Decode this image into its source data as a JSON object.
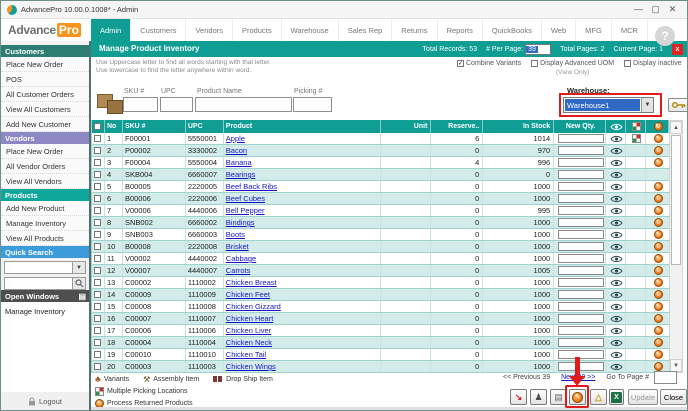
{
  "window": {
    "title": "AdvancePro 10.00.0.1008*  - Admin",
    "minimize": "—",
    "maximize": "▢",
    "close": "✕"
  },
  "brand": {
    "left": "Advance",
    "right": "Pro"
  },
  "nav": {
    "items": [
      "Admin",
      "Customers",
      "Vendors",
      "Products",
      "Warehouse",
      "Sales Rep",
      "Returns",
      "Reports",
      "QuickBooks",
      "Web",
      "MFG",
      "MCR"
    ],
    "active": "Admin"
  },
  "help_label": "?",
  "sidebar": {
    "customers": {
      "title": "Customers",
      "items": [
        "Place New Order",
        "POS",
        "All Customer Orders",
        "View All Customers",
        "Add New Customer"
      ]
    },
    "vendors": {
      "title": "Vendors",
      "items": [
        "Place New Order",
        "All Vendor Orders",
        "View All Vendors"
      ]
    },
    "products": {
      "title": "Products",
      "items": [
        "Add New Product",
        "Manage Inventory",
        "View All Products"
      ]
    },
    "quick_search_title": "Quick Search",
    "open_windows_title": "Open Windows",
    "open_windows_items": [
      "Manage Inventory"
    ],
    "logout_label": "Logout"
  },
  "page_header": {
    "title": "Manage Product Inventory",
    "total_records_label": "Total Records:",
    "total_records": "53",
    "per_page_label": "# Per Page:",
    "per_page_value": "39",
    "total_pages_label": "Total Pages:",
    "total_pages": "2",
    "current_page_label": "Current Page:",
    "current_page": "1",
    "close_badge": "x"
  },
  "hints": {
    "line1": "Use Uppercase letter to find all words starting with that letter.",
    "line2": "Use lowercase to find the letter anywhere within word."
  },
  "options": {
    "combine_variants": "Combine Variants",
    "display_advanced_uom": "Display Advanced UOM",
    "view_only": "(View Only)",
    "display_inactive": "Display inactive"
  },
  "search": {
    "sku": "SKU #",
    "upc": "UPC",
    "product": "Product Name",
    "picking": "Picking #"
  },
  "warehouse": {
    "label": "Warehouse:",
    "selected": "Warehouse1"
  },
  "table": {
    "headers": {
      "no": "No",
      "sku": "SKU #",
      "upc": "UPC",
      "product": "Product",
      "unit": "Unit",
      "reserved": "Reserve..",
      "in_stock": "In Stock",
      "new_qty": "New Qty."
    },
    "rows": [
      {
        "no": "1",
        "sku": "F00001",
        "upc": "5550001",
        "product": "Apple",
        "unit": "",
        "reserved": "6",
        "in_stock": "1014",
        "picking": true,
        "returns": true
      },
      {
        "no": "2",
        "sku": "P00002",
        "upc": "3330002",
        "product": "Bacon",
        "unit": "",
        "reserved": "0",
        "in_stock": "970",
        "picking": false,
        "returns": true
      },
      {
        "no": "3",
        "sku": "F00004",
        "upc": "5550004",
        "product": "Banana",
        "unit": "",
        "reserved": "4",
        "in_stock": "996",
        "picking": false,
        "returns": true
      },
      {
        "no": "4",
        "sku": "SKB004",
        "upc": "6660007",
        "product": "Bearings",
        "unit": "",
        "reserved": "0",
        "in_stock": "0",
        "picking": false,
        "returns": false
      },
      {
        "no": "5",
        "sku": "B00005",
        "upc": "2220005",
        "product": "Beef Back Ribs",
        "unit": "",
        "reserved": "0",
        "in_stock": "1000",
        "picking": false,
        "returns": true
      },
      {
        "no": "6",
        "sku": "B00006",
        "upc": "2220006",
        "product": "Beef Cubes",
        "unit": "",
        "reserved": "0",
        "in_stock": "1000",
        "picking": false,
        "returns": true
      },
      {
        "no": "7",
        "sku": "V00006",
        "upc": "4440006",
        "product": "Bell Pepper",
        "unit": "",
        "reserved": "0",
        "in_stock": "995",
        "picking": false,
        "returns": true
      },
      {
        "no": "8",
        "sku": "SNB002",
        "upc": "6660002",
        "product": "Bindings",
        "unit": "",
        "reserved": "0",
        "in_stock": "1000",
        "picking": false,
        "returns": true
      },
      {
        "no": "9",
        "sku": "SNB003",
        "upc": "6660003",
        "product": "Boots",
        "unit": "",
        "reserved": "0",
        "in_stock": "1000",
        "picking": false,
        "returns": true
      },
      {
        "no": "10",
        "sku": "B00008",
        "upc": "2220008",
        "product": "Brisket",
        "unit": "",
        "reserved": "0",
        "in_stock": "1000",
        "picking": false,
        "returns": true
      },
      {
        "no": "11",
        "sku": "V00002",
        "upc": "4440002",
        "product": "Cabbage",
        "unit": "",
        "reserved": "0",
        "in_stock": "1000",
        "picking": false,
        "returns": true
      },
      {
        "no": "12",
        "sku": "V00007",
        "upc": "4440007",
        "product": "Carrots",
        "unit": "",
        "reserved": "0",
        "in_stock": "1005",
        "picking": false,
        "returns": true
      },
      {
        "no": "13",
        "sku": "C00002",
        "upc": "1110002",
        "product": "Chicken Breast",
        "unit": "",
        "reserved": "0",
        "in_stock": "1000",
        "picking": false,
        "returns": true
      },
      {
        "no": "14",
        "sku": "C00009",
        "upc": "1110009",
        "product": "Chicken Feet",
        "unit": "",
        "reserved": "0",
        "in_stock": "1000",
        "picking": false,
        "returns": true
      },
      {
        "no": "15",
        "sku": "C00008",
        "upc": "1110008",
        "product": "Chicken Gizzard",
        "unit": "",
        "reserved": "0",
        "in_stock": "1000",
        "picking": false,
        "returns": true
      },
      {
        "no": "16",
        "sku": "C00007",
        "upc": "1110007",
        "product": "Chicken Heart",
        "unit": "",
        "reserved": "0",
        "in_stock": "1000",
        "picking": false,
        "returns": true
      },
      {
        "no": "17",
        "sku": "C00006",
        "upc": "1110006",
        "product": "Chicken Liver",
        "unit": "",
        "reserved": "0",
        "in_stock": "1000",
        "picking": false,
        "returns": true
      },
      {
        "no": "18",
        "sku": "C00004",
        "upc": "1110004",
        "product": "Chicken Neck",
        "unit": "",
        "reserved": "0",
        "in_stock": "1000",
        "picking": false,
        "returns": true
      },
      {
        "no": "19",
        "sku": "C00010",
        "upc": "1110010",
        "product": "Chicken Tail",
        "unit": "",
        "reserved": "0",
        "in_stock": "1000",
        "picking": false,
        "returns": true
      },
      {
        "no": "20",
        "sku": "C00003",
        "upc": "1110003",
        "product": "Chicken Wings",
        "unit": "",
        "reserved": "0",
        "in_stock": "1000",
        "picking": false,
        "returns": true
      },
      {
        "no": "21",
        "sku": "V00010",
        "upc": "4440010",
        "product": "Cucumber",
        "unit": "",
        "reserved": "0",
        "in_stock": "1000",
        "picking": false,
        "returns": true
      }
    ]
  },
  "legend": {
    "variants": "Variants",
    "assembly": "Assembly Item",
    "drop_ship": "Drop Ship Item",
    "multiple_picking": "Multiple Picking Locations",
    "process_returned": "Process Returned Products"
  },
  "pagination": {
    "previous": "<< Previous 39",
    "next": "Next 39 >>",
    "goto_label": "Go To Page #"
  },
  "actions": {
    "update": "Update",
    "close": "Close"
  },
  "colors": {
    "teal": "#0f9d94",
    "accent_orange": "#f7941d",
    "annotation_red": "#e01b1b",
    "selection_blue": "#316ac5",
    "link_blue": "#1515c8"
  }
}
